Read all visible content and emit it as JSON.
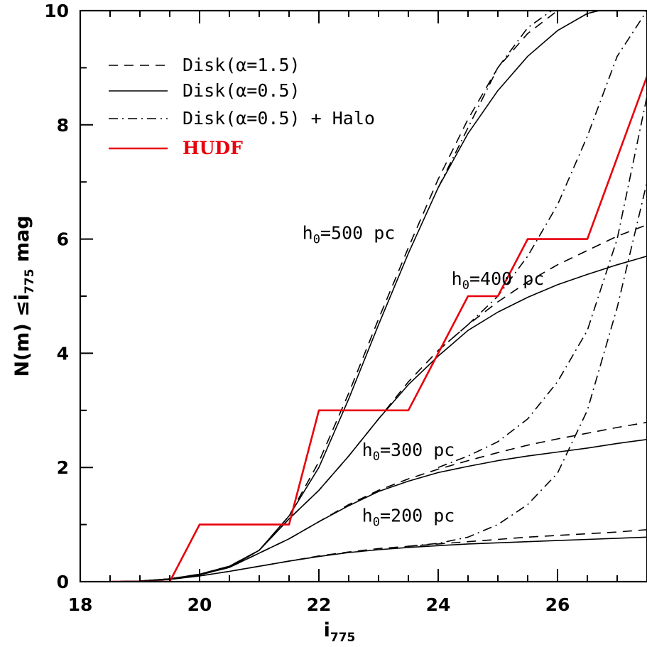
{
  "chart_data": {
    "type": "line",
    "xlabel": "i",
    "xlabel_sub": "775",
    "ylabel": "N(m) ≤i",
    "ylabel_sub": "775",
    "ylabel_suffix": " mag",
    "xlim": [
      18,
      27.5
    ],
    "ylim": [
      0,
      10
    ],
    "x_ticks": [
      18,
      20,
      22,
      24,
      26
    ],
    "y_ticks": [
      0,
      2,
      4,
      6,
      8,
      10
    ],
    "grid": false,
    "legend_position": "top-left",
    "legend": [
      {
        "label": "Disk(α=1.5)",
        "style": "dashed",
        "color": "#000000"
      },
      {
        "label": "Disk(α=0.5)",
        "style": "solid",
        "color": "#000000"
      },
      {
        "label": "Disk(α=0.5) + Halo",
        "style": "dashdot",
        "color": "#000000"
      },
      {
        "label": "HUDF",
        "style": "solid",
        "color": "#e8000b"
      }
    ],
    "annotations": [
      {
        "main": "h",
        "sub": "0",
        "rest": "=500 pc",
        "x": 22.5,
        "y": 6.0
      },
      {
        "main": "h",
        "sub": "0",
        "rest": "=400 pc",
        "x": 25.0,
        "y": 5.2
      },
      {
        "main": "h",
        "sub": "0",
        "rest": "=300 pc",
        "x": 23.5,
        "y": 2.2
      },
      {
        "main": "h",
        "sub": "0",
        "rest": "=200 pc",
        "x": 23.5,
        "y": 1.05
      }
    ],
    "series": [
      {
        "style": "dashed",
        "color": "#000000",
        "x": [
          18.5,
          19.0,
          19.5,
          20.0,
          20.5,
          21.0,
          21.5,
          22.0,
          22.5,
          23.0,
          23.5,
          24.0,
          24.5,
          25.0,
          25.5,
          26.0,
          26.5,
          27.0,
          27.5
        ],
        "y": [
          0.0,
          0.01,
          0.04,
          0.1,
          0.18,
          0.27,
          0.36,
          0.45,
          0.52,
          0.58,
          0.62,
          0.66,
          0.7,
          0.74,
          0.78,
          0.81,
          0.84,
          0.87,
          0.91
        ]
      },
      {
        "style": "solid",
        "color": "#000000",
        "x": [
          18.5,
          19.0,
          19.5,
          20.0,
          20.5,
          21.0,
          21.5,
          22.0,
          22.5,
          23.0,
          23.5,
          24.0,
          24.5,
          25.0,
          25.5,
          26.0,
          26.5,
          27.0,
          27.5
        ],
        "y": [
          0.0,
          0.01,
          0.04,
          0.1,
          0.18,
          0.27,
          0.36,
          0.44,
          0.51,
          0.56,
          0.6,
          0.63,
          0.66,
          0.68,
          0.7,
          0.72,
          0.74,
          0.76,
          0.78
        ]
      },
      {
        "style": "dashdot",
        "color": "#000000",
        "x": [
          23.5,
          24.0,
          24.5,
          25.0,
          25.5,
          26.0,
          26.5,
          27.0,
          27.5
        ],
        "y": [
          0.62,
          0.67,
          0.78,
          1.0,
          1.35,
          1.9,
          3.0,
          4.8,
          7.0
        ]
      },
      {
        "style": "dashed",
        "color": "#000000",
        "x": [
          18.5,
          19.0,
          19.5,
          20.0,
          20.5,
          21.0,
          21.5,
          22.0,
          22.5,
          23.0,
          23.5,
          24.0,
          24.5,
          25.0,
          25.5,
          26.0,
          26.5,
          27.0,
          27.5
        ],
        "y": [
          0.0,
          0.01,
          0.04,
          0.12,
          0.25,
          0.5,
          0.75,
          1.05,
          1.35,
          1.6,
          1.8,
          1.97,
          2.12,
          2.26,
          2.39,
          2.5,
          2.6,
          2.7,
          2.79
        ]
      },
      {
        "style": "solid",
        "color": "#000000",
        "x": [
          18.5,
          19.0,
          19.5,
          20.0,
          20.5,
          21.0,
          21.5,
          22.0,
          22.5,
          23.0,
          23.5,
          24.0,
          24.5,
          25.0,
          25.5,
          26.0,
          26.5,
          27.0,
          27.5
        ],
        "y": [
          0.0,
          0.01,
          0.04,
          0.12,
          0.25,
          0.5,
          0.75,
          1.05,
          1.33,
          1.58,
          1.76,
          1.91,
          2.02,
          2.12,
          2.2,
          2.27,
          2.34,
          2.42,
          2.49
        ]
      },
      {
        "style": "dashdot",
        "color": "#000000",
        "x": [
          24.0,
          24.5,
          25.0,
          25.5,
          26.0,
          26.5,
          27.0,
          27.5
        ],
        "y": [
          2.0,
          2.2,
          2.45,
          2.85,
          3.5,
          4.4,
          6.0,
          8.5
        ]
      },
      {
        "style": "dashed",
        "color": "#000000",
        "x": [
          18.5,
          19.0,
          19.5,
          20.0,
          20.5,
          21.0,
          21.5,
          22.0,
          22.5,
          23.0,
          23.5,
          24.0,
          24.5,
          25.0,
          25.5,
          26.0,
          26.5,
          27.0,
          27.5
        ],
        "y": [
          0.0,
          0.01,
          0.05,
          0.12,
          0.25,
          0.55,
          1.1,
          1.6,
          2.2,
          2.85,
          3.5,
          4.05,
          4.5,
          4.9,
          5.25,
          5.55,
          5.8,
          6.05,
          6.25
        ]
      },
      {
        "style": "solid",
        "color": "#000000",
        "x": [
          18.5,
          19.0,
          19.5,
          20.0,
          20.5,
          21.0,
          21.5,
          22.0,
          22.5,
          23.0,
          23.5,
          24.0,
          24.5,
          25.0,
          25.5,
          26.0,
          26.5,
          27.0,
          27.5
        ],
        "y": [
          0.0,
          0.01,
          0.05,
          0.12,
          0.25,
          0.55,
          1.1,
          1.6,
          2.2,
          2.85,
          3.45,
          3.95,
          4.4,
          4.72,
          4.98,
          5.2,
          5.38,
          5.55,
          5.7
        ]
      },
      {
        "style": "dashdot",
        "color": "#000000",
        "x": [
          24.0,
          24.5,
          25.0,
          25.5,
          26.0,
          26.5,
          27.0,
          27.5
        ],
        "y": [
          4.05,
          4.5,
          5.0,
          5.7,
          6.6,
          7.8,
          9.2,
          10.0
        ]
      },
      {
        "style": "dashed",
        "color": "#000000",
        "x": [
          18.5,
          19.0,
          19.5,
          20.0,
          20.5,
          21.0,
          21.5,
          22.0,
          22.5,
          23.0,
          23.5,
          24.0,
          24.5,
          25.0,
          25.5,
          26.0
        ],
        "y": [
          0.0,
          0.01,
          0.05,
          0.13,
          0.27,
          0.55,
          1.15,
          2.1,
          3.3,
          4.6,
          5.85,
          7.05,
          8.1,
          9.0,
          9.6,
          10.0
        ]
      },
      {
        "style": "solid",
        "color": "#000000",
        "x": [
          18.5,
          19.0,
          19.5,
          20.0,
          20.5,
          21.0,
          21.5,
          22.0,
          22.5,
          23.0,
          23.5,
          24.0,
          24.5,
          25.0,
          25.5,
          26.0,
          26.5,
          26.7
        ],
        "y": [
          0.0,
          0.01,
          0.05,
          0.13,
          0.27,
          0.55,
          1.15,
          2.0,
          3.2,
          4.5,
          5.75,
          6.9,
          7.85,
          8.6,
          9.2,
          9.65,
          9.95,
          10.0
        ]
      },
      {
        "style": "dashdot",
        "color": "#000000",
        "x": [
          24.0,
          24.5,
          25.0,
          25.5,
          25.9
        ],
        "y": [
          6.9,
          7.95,
          9.0,
          9.7,
          10.0
        ]
      },
      {
        "name": "HUDF",
        "style": "solid",
        "color": "#e8000b",
        "x": [
          18.5,
          19.5,
          20.0,
          21.5,
          22.0,
          23.5,
          24.5,
          25.0,
          25.5,
          26.5,
          27.5
        ],
        "y": [
          0,
          0,
          1,
          1,
          3,
          3,
          5,
          5,
          6,
          6,
          8.85
        ]
      }
    ]
  }
}
